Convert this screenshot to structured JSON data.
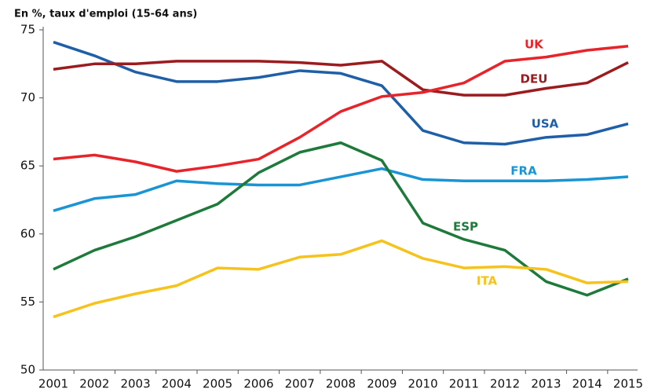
{
  "chart_data": {
    "type": "line",
    "title": "En %, taux d'emploi (15-64 ans)",
    "x": [
      2001,
      2002,
      2003,
      2004,
      2005,
      2006,
      2007,
      2008,
      2009,
      2010,
      2011,
      2012,
      2013,
      2014,
      2015
    ],
    "ylim": [
      50,
      75
    ],
    "yticks": [
      50,
      55,
      60,
      65,
      70,
      75
    ],
    "series": [
      {
        "name": "USA",
        "color": "#1f5fa8",
        "values": [
          74.1,
          73.1,
          71.9,
          71.2,
          71.2,
          71.5,
          72.0,
          71.8,
          70.9,
          67.6,
          66.7,
          66.6,
          67.1,
          67.3,
          68.1
        ]
      },
      {
        "name": "DEU",
        "color": "#9b1b1e",
        "values": [
          72.1,
          72.5,
          72.5,
          72.7,
          72.7,
          72.7,
          72.6,
          72.4,
          72.7,
          70.6,
          70.2,
          70.2,
          70.7,
          71.1,
          72.6
        ]
      },
      {
        "name": "UK",
        "color": "#e8232a",
        "values": [
          65.5,
          65.8,
          65.3,
          64.6,
          65.0,
          65.5,
          67.1,
          69.0,
          70.1,
          70.4,
          71.1,
          72.7,
          73.0,
          73.5,
          73.8
        ]
      },
      {
        "name": "FRA",
        "color": "#1a94d4",
        "values": [
          61.7,
          62.6,
          62.9,
          63.9,
          63.7,
          63.6,
          63.6,
          64.2,
          64.8,
          64.0,
          63.9,
          63.9,
          63.9,
          64.0,
          64.2
        ]
      },
      {
        "name": "ESP",
        "color": "#1e7a3a",
        "values": [
          57.4,
          58.8,
          59.8,
          61.0,
          62.2,
          64.5,
          66.0,
          66.7,
          65.4,
          60.8,
          59.6,
          58.8,
          56.5,
          55.5,
          56.7
        ]
      },
      {
        "name": "ITA",
        "color": "#f6c21c",
        "values": [
          53.9,
          54.9,
          55.6,
          56.2,
          57.5,
          57.4,
          58.3,
          58.5,
          59.5,
          58.2,
          57.5,
          57.6,
          57.4,
          56.4,
          56.5
        ]
      }
    ]
  }
}
